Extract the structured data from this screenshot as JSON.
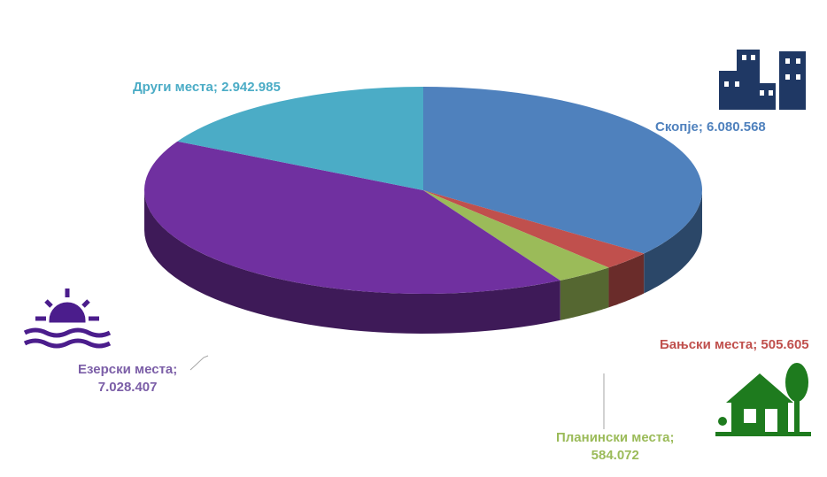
{
  "chart_data": {
    "type": "pie",
    "categories": [
      "Скопје",
      "Бањски места",
      "Планински места",
      "Езерски места",
      "Други места"
    ],
    "values": [
      6080568,
      505605,
      584072,
      7028407,
      2942985
    ],
    "value_labels": [
      "6.080.568",
      "505.605",
      "584.072",
      "7.028.407",
      "2.942.985"
    ],
    "colors": [
      "#4f81bd",
      "#c0504d",
      "#9bbb59",
      "#7030a0",
      "#4bacc6"
    ]
  }
}
